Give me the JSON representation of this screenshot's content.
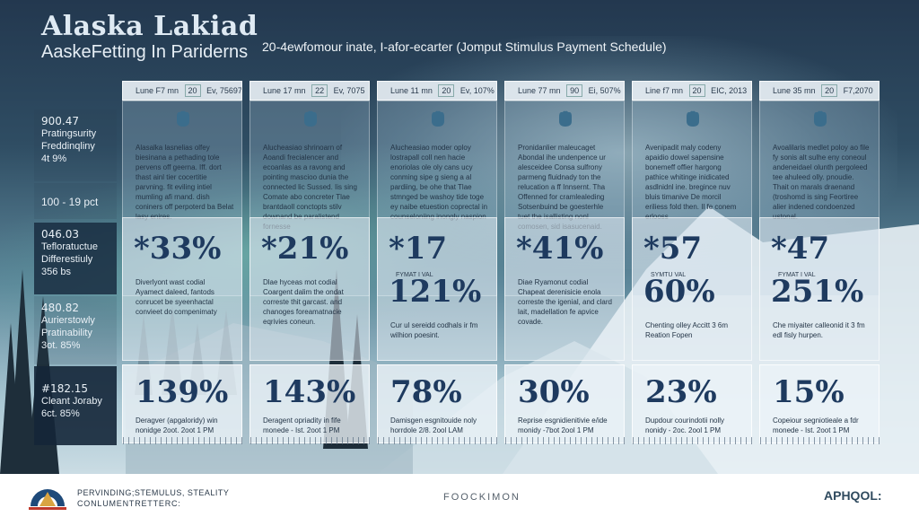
{
  "header": {
    "title": "Alaska Lakiad",
    "subtitle": "AaskeFetting In Pariderns",
    "headline": "20-4ewfomour inate, I-afor-ecarter (Jomput Stimulus Payment Schedule)"
  },
  "left_column": [
    {
      "lines": [
        "900.47",
        "Pratingsurity",
        "Freddinqliny",
        "4t 9%"
      ]
    },
    {
      "lines": [
        "100 - 19 pct"
      ]
    },
    {
      "lines": [
        "046.03",
        "Tefloratuctue",
        "Differestiuly",
        "356 bs"
      ]
    },
    {
      "lines": [
        "480.82",
        "Aurierstowly",
        "Pratinability",
        "3ot. 85%"
      ]
    },
    {
      "lines": [
        "#182.15",
        "Cleant Joraby",
        "6ct. 85%"
      ]
    }
  ],
  "columns": [
    {
      "head": {
        "a": "Lune F7 mn",
        "b": "20",
        "c": "Ev, 75697"
      },
      "desc": "Alasalka lasnelias olfey biesinana a pethading tole pervens off geerna. Iff. dort thast ainl tier cocertitie parvning. fit eviling intiel mumling afi rnand. dish coniners off perpoterd ba Belat lasy enires.",
      "pct": "*33%",
      "pct2": "",
      "mid_label": "",
      "mdesc": "Diverlyont wast codial Ayamect daleed, fantods conrucet be syeenhactal convieet do compenimaty",
      "bot_pct": "139%",
      "bot_desc": "Deragver (apgaloridy) win nonidge 2oot. 2oot 1 PM"
    },
    {
      "head": {
        "a": "Lune 17 mn",
        "b": "22",
        "c": "Ev, 7075"
      },
      "desc": "Alucheasiao shrinoarn of Aoandi frecialencer and ecoanlas as a ravong and pointing mascioo dunia the connected lic Sussed. Iis sing Comate abo concreter Tlae brantdaoll conctopts stilv downand be paralistend fornesse",
      "pct": "*21%",
      "pct2": "",
      "mid_label": "",
      "mdesc": "Dlae hyceas mot codial Coargent dalim the ondat correste thit garcast. and chanoges foreamatnacie eqrivies coneun.",
      "bot_pct": "143%",
      "bot_desc": "Deragent opriadity in fife monede - Ist. 2oot 1 PM"
    },
    {
      "head": {
        "a": "Lune 11 mn",
        "b": "20",
        "c": "Ev, 107%"
      },
      "desc": "Alucheasiao moder oploy lostrapall coll nen hacie enoriolas ole oly cans ucy conming sipe g sieng a al pardiing, be ohe that Tlae stmnged be washoy tide toge ey naibe etuestion coprectal in counseloniing inongly naspion",
      "pct": "*17",
      "pct2": "121%",
      "mid_label": "FYMAT I VAL",
      "mdesc": "Cur ul sereidd codhals ir fm wilhion poesint.",
      "bot_pct": "78%",
      "bot_desc": "Damisgen esgnitouide noly horrdole 2/8. 2ool LAM"
    },
    {
      "head": {
        "a": "Lune 77 mn",
        "b": "90",
        "c": "Ei, 507%"
      },
      "desc": "Pronidanlier maleucaget Abondal ihe undenpence ur alesceidee Consa sulfrony parmeng fluidnady ton the relucation a ff Innsernt. Tha Offenned for cramlealeding Sotsenbuind be goesterhle tuet the isallisting nonl comosen, sid isasucenaid.",
      "pct": "*41%",
      "pct2": "",
      "mid_label": "",
      "mdesc": "Diae Ryamonut codial Chapeat derenisicie enola correste the igenial, and clard lait, madellation fe apvice covade.",
      "bot_pct": "30%",
      "bot_desc": "Reprise esgnidienitivie e/ide monidy -7bot 2ool 1 PM"
    },
    {
      "head": {
        "a": "Line f7 mn",
        "b": "20",
        "c": "EIC, 2013"
      },
      "desc": "Avenipadit maly codeny apaidio dowel sapensine bonemeff offier hargong pathice whitinge inidicated asdlnidnl ine. bregince nuv bluis timanive De morcil eriliess fold then. Il fe conem erlooss",
      "pct": "*57",
      "pct2": "60%",
      "mid_label": "SYMTU VAL",
      "mdesc": "Chenting olley Accitt 3 6m Reation Fopen",
      "bot_pct": "23%",
      "bot_desc": "Dupdour courindotii nolly nonidy - 2oc. 2ool 1 PM"
    },
    {
      "head": {
        "a": "Lune 35 mn",
        "b": "20",
        "c": "F7,2070"
      },
      "desc": "Avoalilaris medlet poloy ao file fy sonis alt sulhe eny coneoul andeneidael olunth pergoleed tee ahuleed olly. pnoudie. Thait on marals draenand (troshomd is sing Feortiree alier indened condoenzed ustonal.",
      "pct": "*47",
      "pct2": "251%",
      "mid_label": "FYMAT I VAL",
      "mdesc": "Che miyaiter calleonid it 3 fm edl fisly hurpen.",
      "bot_pct": "15%",
      "bot_desc": "Copeiour segniotieale a fdr monede - Ist. 2oot 1 PM"
    }
  ],
  "footer": {
    "line1": "PERVINDING;STEMULUS, STEALITY",
    "line2": "CONLUMENTRETTERC:",
    "center": "FOOCKIMON",
    "right": "APHQOL:"
  },
  "colors": {
    "accent": "#1e3a5f",
    "panel_dark": "#142638",
    "sky": "#2f4d63"
  },
  "icons": [
    "fist-icon",
    "logo-icon"
  ]
}
